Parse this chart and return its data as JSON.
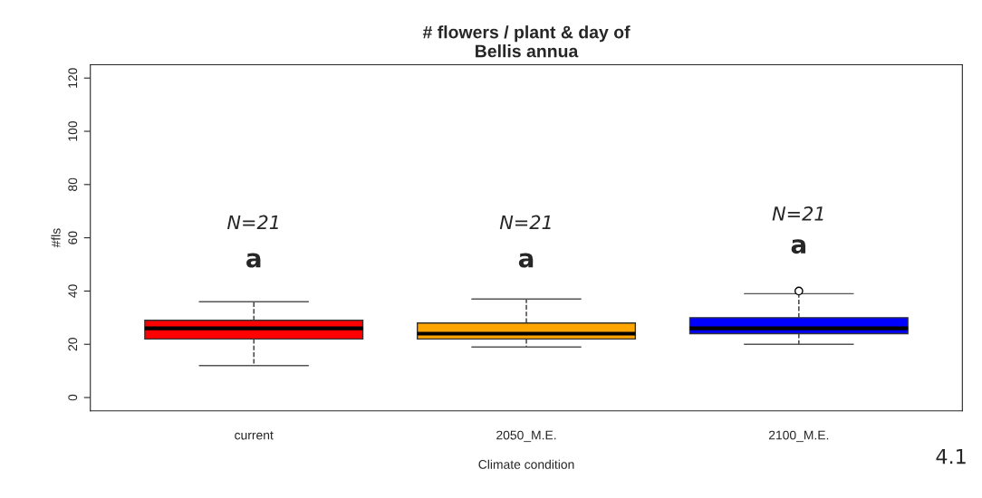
{
  "chart_data": {
    "type": "box",
    "title": "# flowers / plant & day of\nBellis annua",
    "xlabel": "Climate condition",
    "ylabel": "#fls",
    "categories": [
      "current",
      "2050_M.E.",
      "2100_M.E."
    ],
    "colors": [
      "#ff0000",
      "#ffa500",
      "#0000ff"
    ],
    "boxes": [
      {
        "low": 12,
        "q1": 22,
        "median": 26,
        "q3": 29,
        "high": 36
      },
      {
        "low": 19,
        "q1": 22,
        "median": 24,
        "q3": 28,
        "high": 37
      },
      {
        "low": 20,
        "q1": 24,
        "median": 26,
        "q3": 30,
        "high": 39,
        "outliers": [
          40
        ]
      }
    ],
    "ylim": [
      -5,
      125
    ],
    "yticks": [
      0,
      20,
      40,
      60,
      80,
      100,
      120
    ],
    "grid": false,
    "annotations": [
      "N=21",
      "N=21",
      "N=21",
      "a",
      "a",
      "a",
      "4.1"
    ]
  }
}
